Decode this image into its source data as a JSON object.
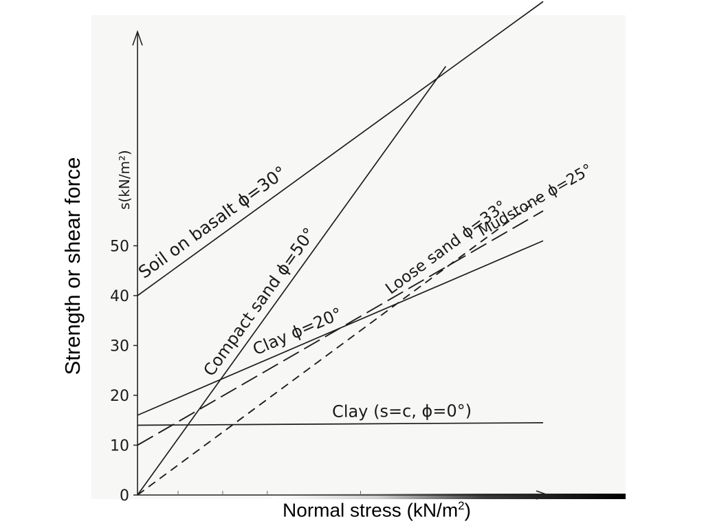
{
  "chart_data": {
    "type": "line",
    "xlabel": "Normal stress (kN/m2)",
    "xlabel_parts": {
      "base": "Normal stress (kN/m",
      "sup": "2",
      "end": ")"
    },
    "ylabel": "Strength or shear force",
    "inner_ylabel": "s(kN/m²)",
    "ylim": [
      0,
      100
    ],
    "y_ticks": [
      0,
      10,
      20,
      30,
      40,
      50
    ],
    "grid": false,
    "series": [
      {
        "name": "Soil on basalt  ϕ=30°",
        "style": "solid",
        "x": [
          0,
          100
        ],
        "y": [
          40,
          99
        ]
      },
      {
        "name": "Compact sand ϕ=50°",
        "style": "solid",
        "x": [
          0,
          76
        ],
        "y": [
          0,
          86
        ]
      },
      {
        "name": "Loose sand ϕ=33°",
        "style": "dashed",
        "x": [
          0,
          100
        ],
        "y": [
          0,
          60
        ]
      },
      {
        "name": "Mudstone ϕ=25°",
        "style": "long-dashed",
        "x": [
          0,
          100
        ],
        "y": [
          10,
          57
        ]
      },
      {
        "name": "Clay ϕ=20°",
        "style": "solid",
        "x": [
          0,
          100
        ],
        "y": [
          16,
          51
        ]
      },
      {
        "name": "Clay (s=c, ϕ=0°)",
        "style": "solid",
        "x": [
          0,
          100
        ],
        "y": [
          14,
          14.5
        ]
      }
    ]
  }
}
